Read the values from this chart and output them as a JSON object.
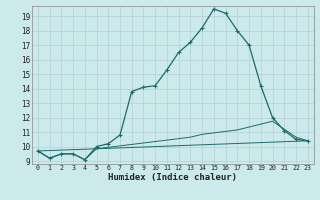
{
  "xlabel": "Humidex (Indice chaleur)",
  "bg_color": "#cce9ec",
  "grid_color": "#b8d4d8",
  "line_color": "#1a6b6b",
  "xlim": [
    -0.5,
    23.5
  ],
  "ylim": [
    8.8,
    19.7
  ],
  "yticks": [
    9,
    10,
    11,
    12,
    13,
    14,
    15,
    16,
    17,
    18,
    19
  ],
  "xticks": [
    0,
    1,
    2,
    3,
    4,
    5,
    6,
    7,
    8,
    9,
    10,
    11,
    12,
    13,
    14,
    15,
    16,
    17,
    18,
    19,
    20,
    21,
    22,
    23
  ],
  "series1_x": [
    0,
    1,
    2,
    3,
    4,
    5,
    6,
    7,
    8,
    9,
    10,
    11,
    12,
    13,
    14,
    15,
    16,
    17,
    18,
    19,
    20,
    21,
    22,
    23
  ],
  "series1_y": [
    9.7,
    9.2,
    9.5,
    9.5,
    9.1,
    10.0,
    10.2,
    10.8,
    13.8,
    14.1,
    14.2,
    15.3,
    16.5,
    17.2,
    18.2,
    19.5,
    19.2,
    18.0,
    17.0,
    14.2,
    12.0,
    11.1,
    10.5,
    10.4
  ],
  "series2_x": [
    0,
    1,
    2,
    3,
    4,
    5,
    6,
    7,
    8,
    9,
    10,
    11,
    12,
    13,
    14,
    15,
    16,
    17,
    18,
    19,
    20,
    21,
    22,
    23
  ],
  "series2_y": [
    9.7,
    9.2,
    9.5,
    9.5,
    9.1,
    9.85,
    9.95,
    10.05,
    10.15,
    10.25,
    10.35,
    10.45,
    10.55,
    10.65,
    10.85,
    10.95,
    11.05,
    11.15,
    11.35,
    11.55,
    11.75,
    11.2,
    10.65,
    10.4
  ],
  "series3_x": [
    0,
    5,
    23
  ],
  "series3_y": [
    9.7,
    9.85,
    10.4
  ]
}
